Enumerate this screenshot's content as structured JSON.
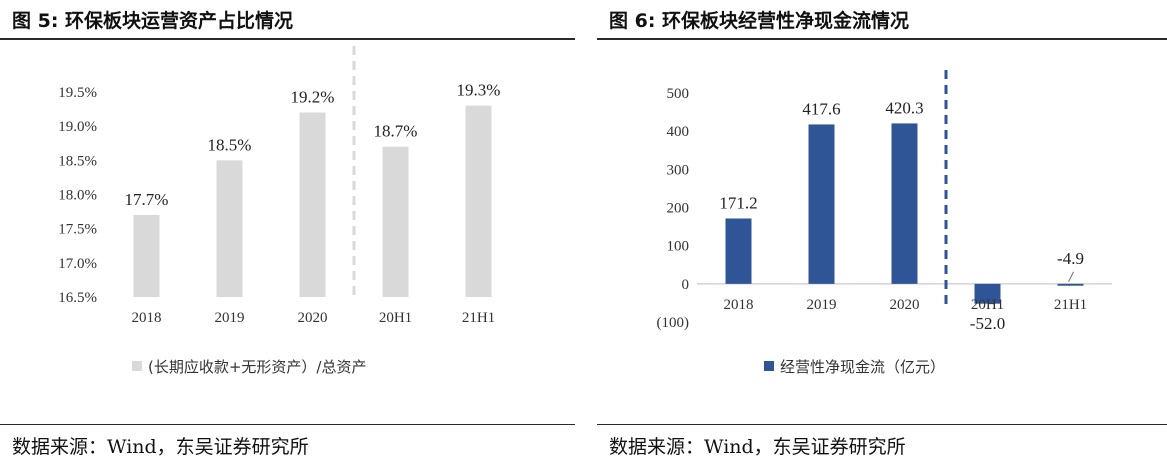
{
  "left": {
    "title": "图 5:  环保板块运营资产占比情况",
    "source": "数据来源：Wind，东吴证券研究所",
    "chart_data": {
      "type": "bar",
      "categories": [
        "2018",
        "2019",
        "2020",
        "20H1",
        "21H1"
      ],
      "series": [
        {
          "name": "(长期应收款+无形资产）/总资产",
          "values": [
            17.7,
            18.5,
            19.2,
            18.7,
            19.3
          ],
          "color": "#d9d9d9"
        }
      ],
      "value_labels": [
        "17.7%",
        "18.5%",
        "19.2%",
        "18.7%",
        "19.3%"
      ],
      "ylim": [
        16.5,
        19.5
      ],
      "yticks": [
        16.5,
        17.0,
        17.5,
        18.0,
        18.5,
        19.0,
        19.5
      ],
      "ytick_labels": [
        "16.5%",
        "17.0%",
        "17.5%",
        "18.0%",
        "18.5%",
        "19.0%",
        "19.5%"
      ],
      "divider_after_index": 2,
      "divider_color": "#d9d9d9",
      "legend": "bottom"
    }
  },
  "right": {
    "title": "图 6:  环保板块经营性净现金流情况",
    "source": "数据来源：Wind，东吴证券研究所",
    "chart_data": {
      "type": "bar",
      "categories": [
        "2018",
        "2019",
        "2020",
        "20H1",
        "21H1"
      ],
      "series": [
        {
          "name": "经营性净现金流（亿元）",
          "values": [
            171.2,
            417.6,
            420.3,
            -52.0,
            -4.9
          ],
          "color": "#2f5597"
        }
      ],
      "value_labels": [
        "171.2",
        "417.6",
        "420.3",
        "-52.0",
        "-4.9"
      ],
      "ylim": [
        -100,
        500
      ],
      "yticks": [
        -100,
        0,
        100,
        200,
        300,
        400,
        500
      ],
      "ytick_labels": [
        "(100)",
        "0",
        "100",
        "200",
        "300",
        "400",
        "500"
      ],
      "negative_tick_color": "#c00000",
      "divider_after_index": 2,
      "divider_color": "#2f5597",
      "legend": "bottom"
    }
  }
}
